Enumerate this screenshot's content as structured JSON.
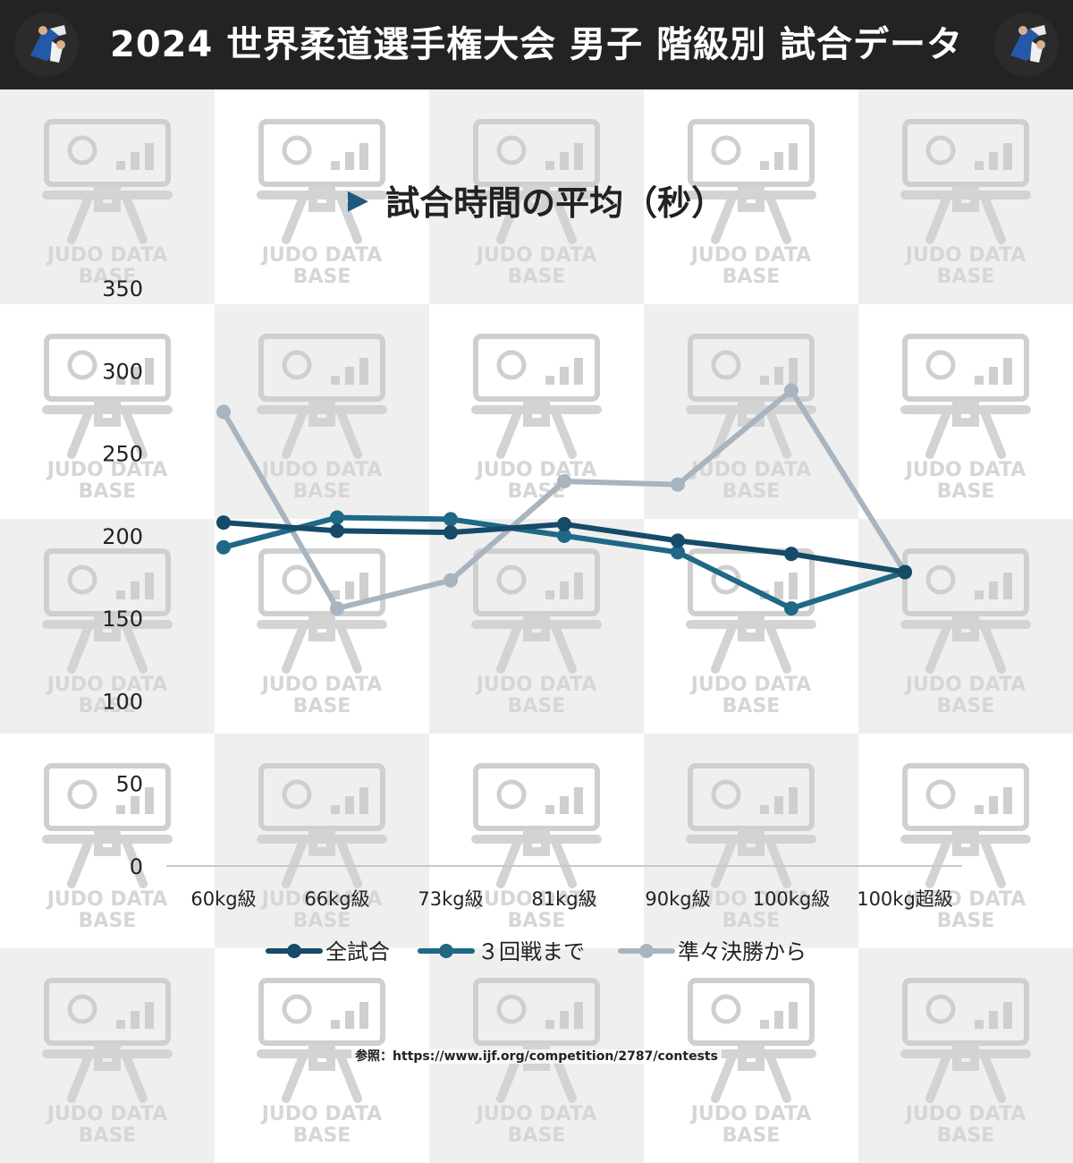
{
  "header": {
    "title": "2024 世界柔道選手権大会 男子 階級別 試合データ"
  },
  "subtitle": {
    "marker": "▶",
    "text": "試合時間の平均（秒）"
  },
  "watermark": {
    "line1": "JUDO DATA",
    "line2": "BASE"
  },
  "footer": {
    "reference": "参照：https://www.ijf.org/competition/2787/contests"
  },
  "colors": {
    "header_bg": "#232323",
    "accent": "#1c5b7e",
    "series_all": "#154a68",
    "series_r3": "#1f6886",
    "series_qf": "#a8b4bf"
  },
  "chart_data": {
    "type": "line",
    "title": "試合時間の平均（秒）",
    "xlabel": "",
    "ylabel": "",
    "categories": [
      "60kg級",
      "66kg級",
      "73kg級",
      "81kg級",
      "90kg級",
      "100kg級",
      "100kg超級"
    ],
    "yticks": [
      0,
      50,
      100,
      150,
      200,
      250,
      300,
      350
    ],
    "ylim": [
      0,
      350
    ],
    "grid": false,
    "legend_position": "bottom",
    "series": [
      {
        "name": "全試合",
        "color": "#154a68",
        "values": [
          208,
          203,
          202,
          207,
          197,
          189,
          178
        ]
      },
      {
        "name": "３回戦まで",
        "color": "#1f6886",
        "values": [
          193,
          211,
          210,
          200,
          190,
          156,
          178
        ]
      },
      {
        "name": "準々決勝から",
        "color": "#a8b4bf",
        "values": [
          275,
          156,
          173,
          233,
          231,
          288,
          178
        ]
      }
    ]
  }
}
